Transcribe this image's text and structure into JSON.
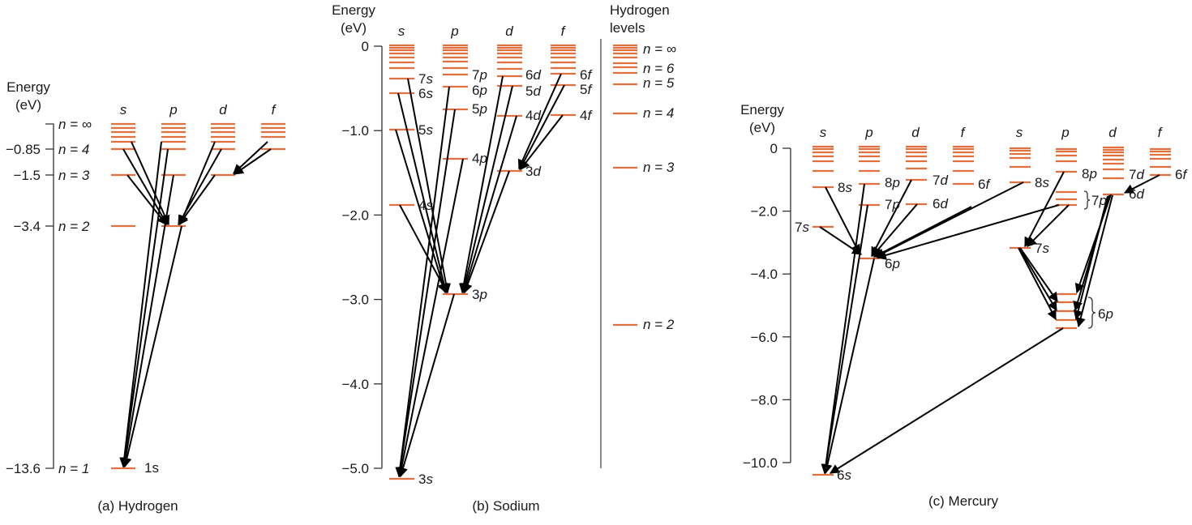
{
  "figure": {
    "colors": {
      "level": "#e0703e",
      "arrow": "#000000",
      "axis": "#333333",
      "separator": "#8a8a8a"
    },
    "panels": [
      {
        "id": "hydrogen",
        "caption": "(a) Hydrogen",
        "axis_title": [
          "Energy",
          "(eV)"
        ],
        "ticks": [
          {
            "value": -0.85,
            "label": "−0.85"
          },
          {
            "value": -1.5,
            "label": "−1.5"
          },
          {
            "value": -3.4,
            "label": "−3.4"
          },
          {
            "value": -13.6,
            "label": "−13.6"
          }
        ],
        "n_labels": [
          "n = ∞",
          "n = 4",
          "n = 3",
          "n = 2",
          "n = 1"
        ],
        "columns": [
          "s",
          "p",
          "d",
          "f"
        ],
        "state_labels": [
          "1s"
        ]
      },
      {
        "id": "sodium",
        "caption": "(b) Sodium",
        "axis_title": [
          "Energy",
          "(eV)"
        ],
        "ticks": [
          {
            "value": 0,
            "label": "0"
          },
          {
            "value": -1.0,
            "label": "−1.0"
          },
          {
            "value": -2.0,
            "label": "−2.0"
          },
          {
            "value": -3.0,
            "label": "−3.0"
          },
          {
            "value": -4.0,
            "label": "−4.0"
          },
          {
            "value": -5.0,
            "label": "−5.0"
          }
        ],
        "columns": [
          "s",
          "p",
          "d",
          "f"
        ],
        "state_labels": [
          "7s",
          "6s",
          "5s",
          "4s",
          "3s",
          "7p",
          "6p",
          "5p",
          "4p",
          "3p",
          "6d",
          "5d",
          "4d",
          "3d",
          "6f",
          "5f",
          "4f"
        ],
        "hydrogen_reference": {
          "title": [
            "Hydrogen",
            "levels"
          ],
          "labels": [
            "n = ∞",
            "n = 6",
            "n = 5",
            "n = 4",
            "n = 3",
            "n = 2"
          ]
        }
      },
      {
        "id": "mercury",
        "caption": "(c) Mercury",
        "axis_title": [
          "Energy",
          "(eV)"
        ],
        "ticks": [
          {
            "value": 0,
            "label": "0"
          },
          {
            "value": -2.0,
            "label": "−2.0"
          },
          {
            "value": -4.0,
            "label": "−4.0"
          },
          {
            "value": -6.0,
            "label": "−6.0"
          },
          {
            "value": -8.0,
            "label": "−8.0"
          },
          {
            "value": -10.0,
            "label": "−10.0"
          }
        ],
        "columns_singlet": [
          "s",
          "p",
          "d",
          "f"
        ],
        "columns_triplet": [
          "s",
          "p",
          "d",
          "f"
        ],
        "state_labels": [
          "8s",
          "7s",
          "8p",
          "7p",
          "6p",
          "7d",
          "6d",
          "6f",
          "8s",
          "8p",
          "7p",
          "7d",
          "6d",
          "6f",
          "7s",
          "6p",
          "6s"
        ]
      }
    ]
  }
}
